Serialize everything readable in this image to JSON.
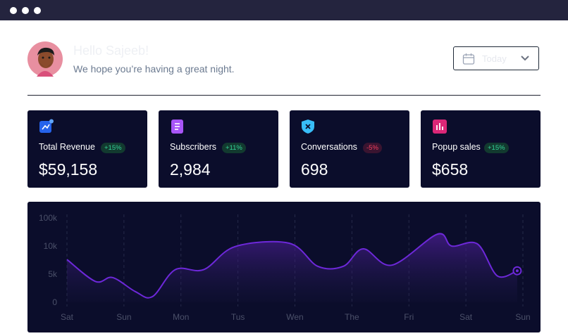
{
  "header": {
    "greeting": "Hello Sajeeb!",
    "subtitle": "We hope you’re having a great night.",
    "date_filter": "Today"
  },
  "stats": [
    {
      "label": "Total Revenue",
      "change": "+15%",
      "value": "$59,158"
    },
    {
      "label": "Subscribers",
      "change": "+11%",
      "value": "2,984"
    },
    {
      "label": "Conversations",
      "change": "-5%",
      "value": "698"
    },
    {
      "label": "Popup sales",
      "change": "+15%",
      "value": "$658"
    }
  ],
  "chart_data": {
    "type": "area",
    "xlim": [
      0,
      8
    ],
    "xticks": [
      {
        "value": 0,
        "label": "Sat"
      },
      {
        "value": 1,
        "label": "Sun"
      },
      {
        "value": 2,
        "label": "Mon"
      },
      {
        "value": 3,
        "label": "Tus"
      },
      {
        "value": 4,
        "label": "Wen"
      },
      {
        "value": 5,
        "label": "The"
      },
      {
        "value": 6,
        "label": "Fri"
      },
      {
        "value": 7,
        "label": "Sat"
      },
      {
        "value": 8,
        "label": "Sun"
      }
    ],
    "ylim": [
      0,
      100000
    ],
    "yticks": [
      {
        "value": 0,
        "label": "0"
      },
      {
        "value": 5000,
        "label": "5k"
      },
      {
        "value": 10000,
        "label": "10k"
      },
      {
        "value": 100000,
        "label": "100k"
      }
    ],
    "grid": true,
    "series": [
      {
        "color": "#6d28d9",
        "x": [
          0,
          0.5,
          0.8,
          1.2,
          1.5,
          1.9,
          2.4,
          2.95,
          3.9,
          4.4,
          4.85,
          5.2,
          5.7,
          6.5,
          6.75,
          7.2,
          7.55,
          7.9
        ],
        "values": [
          7600,
          3700,
          4400,
          1900,
          1000,
          5800,
          5800,
          9900,
          19000,
          6400,
          6400,
          9500,
          6600,
          48000,
          10000,
          17000,
          4700,
          5600
        ]
      }
    ]
  }
}
